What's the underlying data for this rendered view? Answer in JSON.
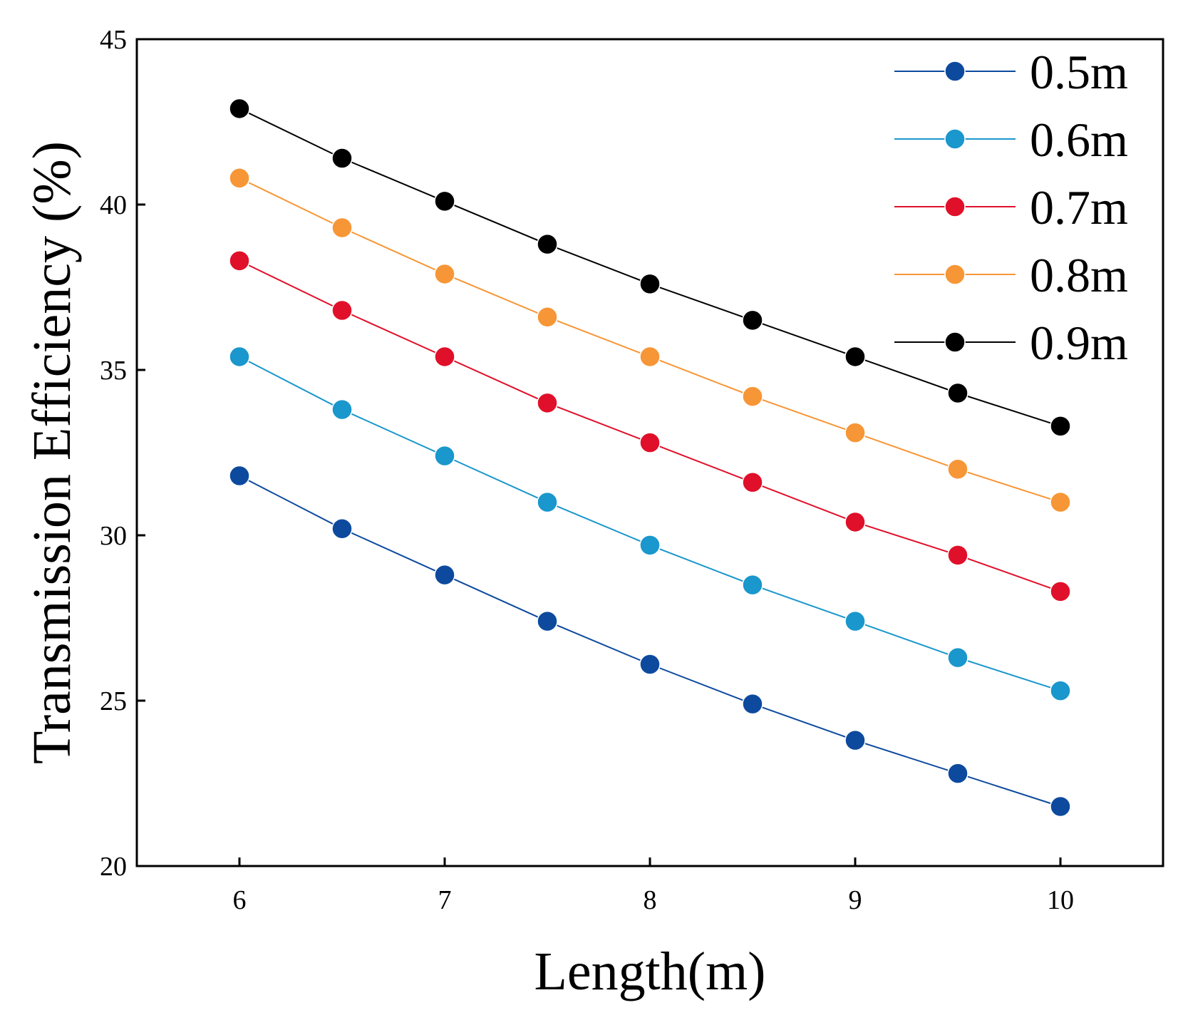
{
  "chart_data": {
    "type": "line",
    "title": "",
    "xlabel": "Length(m)",
    "ylabel": "Transmission Efficiency (%)",
    "xlim": [
      5.5,
      10.5
    ],
    "ylim": [
      20,
      45
    ],
    "xticks": [
      6,
      7,
      8,
      9,
      10
    ],
    "yticks": [
      20,
      25,
      30,
      35,
      40,
      45
    ],
    "x": [
      6,
      6.5,
      7,
      7.5,
      8,
      8.5,
      9,
      9.5,
      10
    ],
    "grid": false,
    "legend_position": "top-right",
    "series": [
      {
        "name": "0.5m",
        "color": "#0d4a9e",
        "values": [
          31.8,
          30.2,
          28.8,
          27.4,
          26.1,
          24.9,
          23.8,
          22.8,
          21.8
        ]
      },
      {
        "name": "0.6m",
        "color": "#1a97cc",
        "values": [
          35.4,
          33.8,
          32.4,
          31.0,
          29.7,
          28.5,
          27.4,
          26.3,
          25.3
        ]
      },
      {
        "name": "0.7m",
        "color": "#e0102a",
        "values": [
          38.3,
          36.8,
          35.4,
          34.0,
          32.8,
          31.6,
          30.4,
          29.4,
          28.3
        ]
      },
      {
        "name": "0.8m",
        "color": "#f79636",
        "values": [
          40.8,
          39.3,
          37.9,
          36.6,
          35.4,
          34.2,
          33.1,
          32.0,
          31.0
        ]
      },
      {
        "name": "0.9m",
        "color": "#000000",
        "values": [
          42.9,
          41.4,
          40.1,
          38.8,
          37.6,
          36.5,
          35.4,
          34.3,
          33.3
        ]
      }
    ]
  }
}
